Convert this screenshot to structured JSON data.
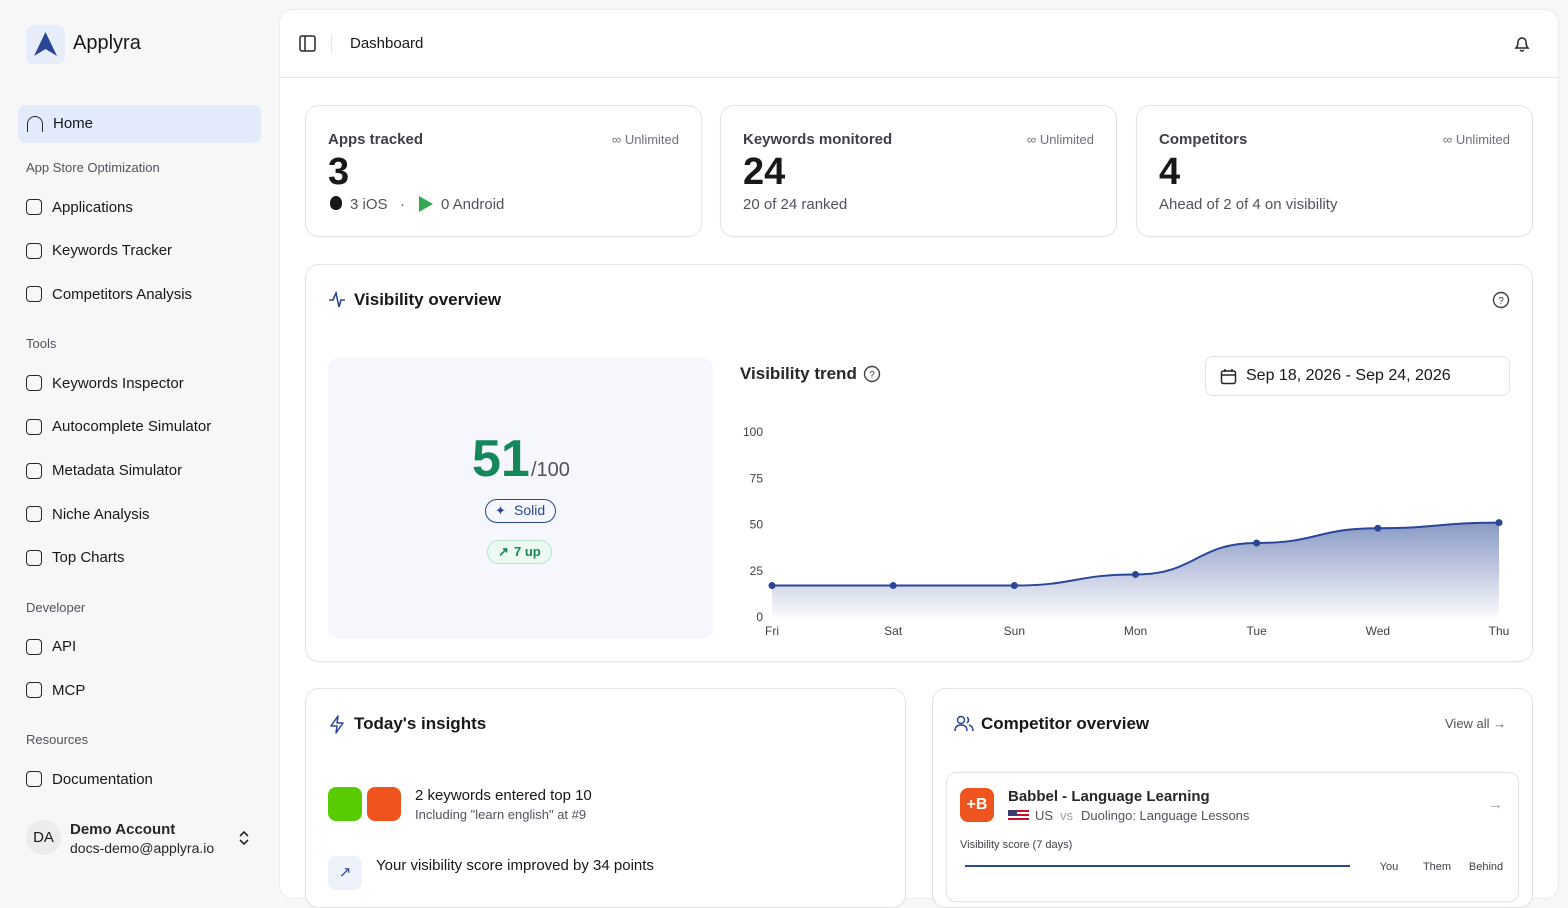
{
  "sidebar": {
    "brand": "Applyra",
    "home": "Home",
    "sections": [
      {
        "title": "App Store Optimization",
        "items": [
          "Applications",
          "Keywords Tracker",
          "Competitors Analysis"
        ]
      },
      {
        "title": "Tools",
        "items": [
          "Keywords Inspector",
          "Autocomplete Simulator",
          "Metadata Simulator",
          "Niche Analysis",
          "Top Charts"
        ]
      },
      {
        "title": "Developer",
        "items": [
          "API",
          "MCP"
        ]
      },
      {
        "title": "Resources",
        "items": [
          "Documentation"
        ]
      }
    ],
    "account": {
      "initials": "DA",
      "name": "Demo Account",
      "email": "docs-demo@applyra.io"
    }
  },
  "header": {
    "title": "Dashboard"
  },
  "stats": [
    {
      "label": "Apps tracked",
      "limit": "Unlimited",
      "value": 3,
      "ios": "3 iOS",
      "separator": "·",
      "android": "0 Android"
    },
    {
      "label": "Keywords monitored",
      "limit": "Unlimited",
      "value": 24,
      "detail": "20 of 24 ranked"
    },
    {
      "label": "Competitors",
      "limit": "Unlimited",
      "value": 4,
      "detail": "Ahead of 2 of 4 on visibility"
    }
  ],
  "visibility": {
    "title": "Visibility overview",
    "score": 51,
    "max": "/100",
    "badge": "Solid",
    "change": "7 up",
    "date_range": "Sep 18, 2026 - Sep 24, 2026"
  },
  "chart_data": {
    "type": "area",
    "title": "Visibility trend",
    "categories": [
      "Fri",
      "Sat",
      "Sun",
      "Mon",
      "Tue",
      "Wed",
      "Thu"
    ],
    "values": [
      17,
      17,
      17,
      23,
      40,
      48,
      51
    ],
    "color": "#2a4696",
    "ylim": [
      0,
      100
    ],
    "yticks": [
      0,
      25,
      50,
      75,
      100
    ],
    "grid": false
  },
  "insights": {
    "title": "Today's insights",
    "items": [
      {
        "title": "2 keywords entered top 10",
        "detail": "Including \"learn english\" at #9"
      },
      {
        "title": "Your visibility score improved by 34 points"
      }
    ]
  },
  "competitors": {
    "title": "Competitor overview",
    "view_all": "View all",
    "card": {
      "icon": "+B",
      "name": "Babbel - Language Learning",
      "country": "US",
      "vs": "vs",
      "rival": "Duolingo: Language Lessons",
      "score_label": "Visibility score (7 days)",
      "legend": [
        "You",
        "Them",
        "Behind"
      ]
    }
  }
}
